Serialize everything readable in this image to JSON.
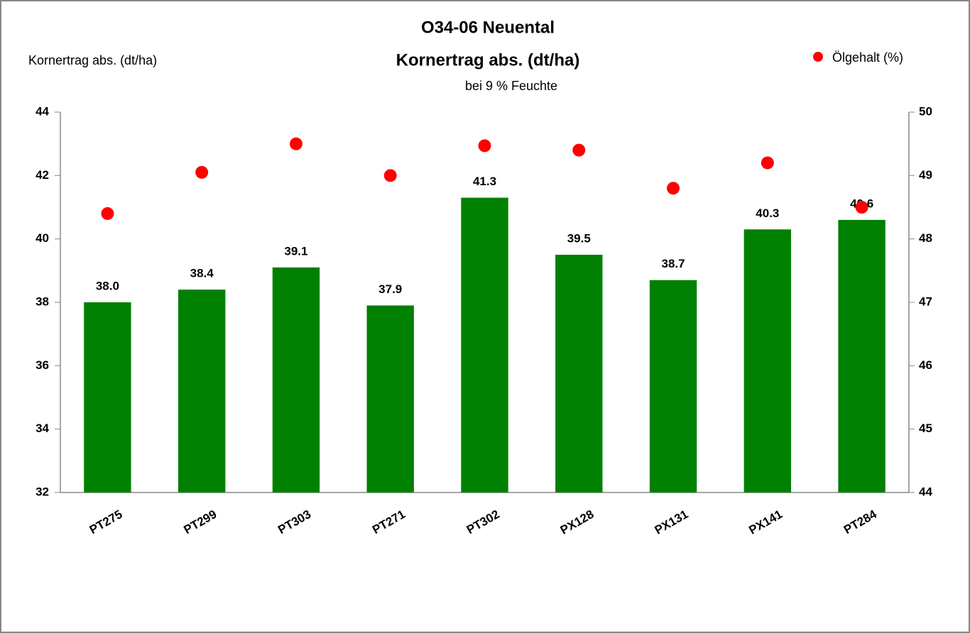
{
  "chart_data": {
    "type": "bar",
    "title": "O34-06 Neuental",
    "subtitle": "Kornertrag abs. (dt/ha)",
    "note": "bei 9 % Feuchte",
    "y_label": "Kornertrag abs. (dt/ha)",
    "categories": [
      "PT275",
      "PT299",
      "PT303",
      "PT271",
      "PT302",
      "PX128",
      "PX131",
      "PX141",
      "PT284"
    ],
    "series": [
      {
        "type": "bar",
        "color": "#008000",
        "values": [
          38.0,
          38.4,
          39.1,
          37.9,
          41.3,
          39.5,
          38.7,
          40.3,
          40.6
        ],
        "value_labels": [
          "38.0",
          "38.4",
          "39.1",
          "37.9",
          "41.3",
          "39.5",
          "38.7",
          "40.3",
          "40.6"
        ]
      },
      {
        "type": "scatter",
        "name": "Ölgehalt (%)",
        "color": "#ff0000",
        "axis": "y2",
        "values": [
          48.4,
          49.05,
          49.5,
          49.0,
          49.47,
          49.4,
          48.8,
          49.2,
          48.5
        ]
      }
    ],
    "ylim": [
      32,
      44
    ],
    "yticks": [
      32,
      34,
      36,
      38,
      40,
      42,
      44
    ],
    "y2lim": [
      44,
      50
    ],
    "y2ticks": [
      44,
      45,
      46,
      47,
      48,
      49,
      50
    ],
    "grid": false,
    "legend": "upper right"
  }
}
